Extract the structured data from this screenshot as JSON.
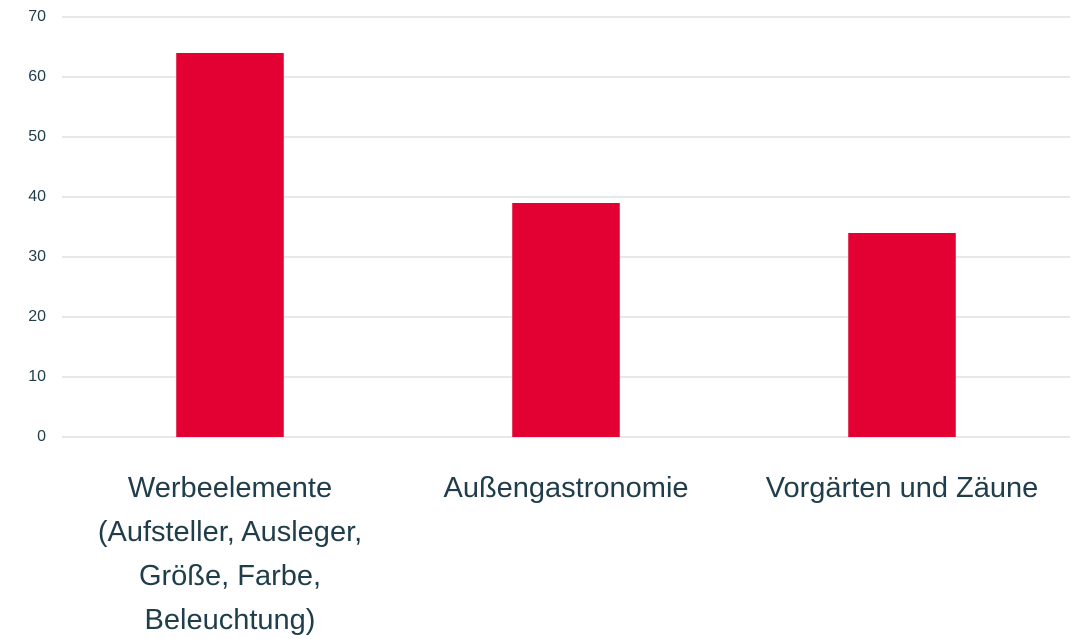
{
  "chart_data": {
    "type": "bar",
    "categories": [
      "Werbeelemente (Aufsteller, Ausleger, Größe, Farbe, Beleuchtung)",
      "Außengastronomie",
      "Vorgärten und Zäune"
    ],
    "values": [
      64,
      39,
      34
    ],
    "color": "#e30032",
    "ylim": [
      0,
      70
    ],
    "yticks": [
      0,
      10,
      20,
      30,
      40,
      50,
      60,
      70
    ],
    "grid": true
  }
}
